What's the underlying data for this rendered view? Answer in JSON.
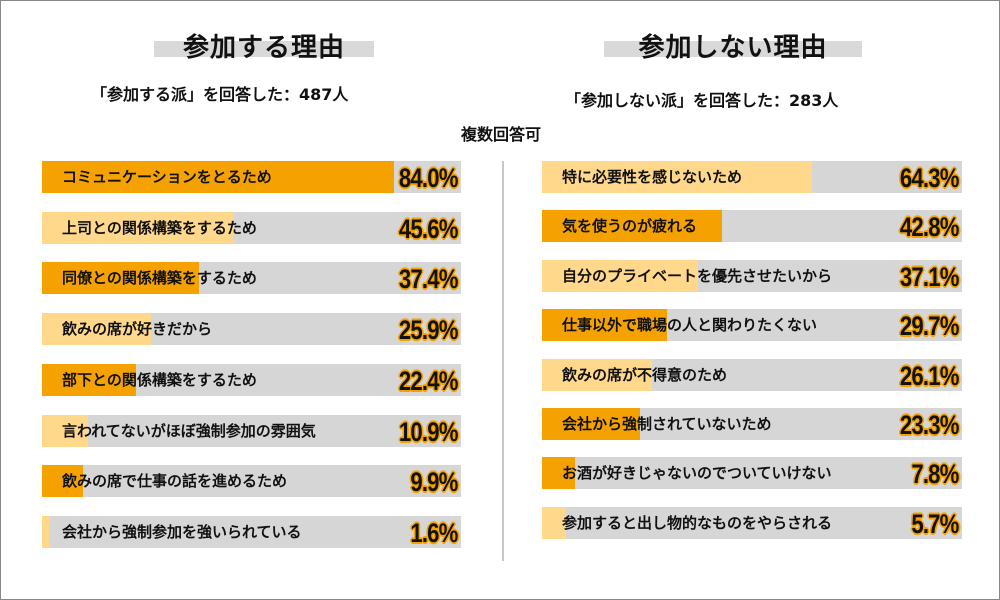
{
  "chart_data": [
    {
      "type": "bar",
      "orientation": "horizontal",
      "title": "参加する理由",
      "respondents": "「参加する派」を回答した：487人",
      "xlim": [
        0,
        100
      ],
      "categories": [
        "コミュニケーションをとるため",
        "上司との関係構築をするため",
        "同僚との関係構築をするため",
        "飲みの席が好きだから",
        "部下との関係構築をするため",
        "言われてないがほぼ強制参加の雰囲気",
        "飲みの席で仕事の話を進めるため",
        "会社から強制参加を強いられている"
      ],
      "values": [
        84.0,
        45.6,
        37.4,
        25.9,
        22.4,
        10.9,
        9.9,
        1.6
      ],
      "value_labels": [
        "84.0%",
        "45.6%",
        "37.4%",
        "25.9%",
        "22.4%",
        "10.9%",
        "9.9%",
        "1.6%"
      ],
      "highlight": [
        true,
        false,
        true,
        false,
        true,
        false,
        true,
        false
      ]
    },
    {
      "type": "bar",
      "orientation": "horizontal",
      "title": "参加しない理由",
      "respondents": "「参加しない派」を回答した：283人",
      "xlim": [
        0,
        100
      ],
      "categories": [
        "特に必要性を感じないため",
        "気を使うのが疲れる",
        "自分のプライベートを優先させたいから",
        "仕事以外で職場の人と関わりたくない",
        "飲みの席が不得意のため",
        "会社から強制されていないため",
        "お酒が好きじゃないのでついていけない",
        "参加すると出し物的なものをやらされる"
      ],
      "values": [
        64.3,
        42.8,
        37.1,
        29.7,
        26.1,
        23.3,
        7.8,
        5.7
      ],
      "value_labels": [
        "64.3%",
        "42.8%",
        "37.1%",
        "29.7%",
        "26.1%",
        "23.3%",
        "7.8%",
        "5.7%"
      ],
      "highlight": [
        false,
        true,
        false,
        true,
        false,
        true,
        true,
        false
      ]
    }
  ],
  "note": "複数回答可",
  "colors": {
    "highlight": "#f5a200",
    "light": "#ffd88c",
    "track": "#d6d6d6",
    "title_bar": "#d9d9d9"
  }
}
